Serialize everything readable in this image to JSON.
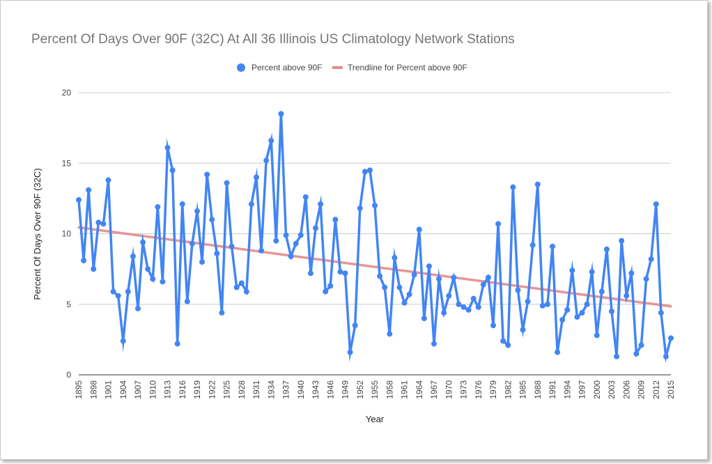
{
  "chart_data": {
    "type": "line",
    "title": "Percent Of Days Over 90F (32C) At All 36 Illinois US Climatology Network Stations",
    "xlabel": "Year",
    "ylabel": "Percent Of Days Over 90F (32C)",
    "ylim": [
      0,
      20
    ],
    "yticks": [
      0,
      5,
      10,
      15,
      20
    ],
    "xlim": [
      1895,
      2015
    ],
    "xticks": [
      1895,
      1898,
      1901,
      1904,
      1907,
      1910,
      1913,
      1916,
      1919,
      1922,
      1925,
      1928,
      1931,
      1934,
      1937,
      1940,
      1943,
      1946,
      1949,
      1952,
      1955,
      1958,
      1961,
      1964,
      1967,
      1970,
      1973,
      1976,
      1979,
      1982,
      1985,
      1988,
      1991,
      1994,
      1997,
      2000,
      2003,
      2006,
      2009,
      2012,
      2015
    ],
    "grid": true,
    "legend_position": "top",
    "series": [
      {
        "name": "Percent above 90F",
        "color": "#4285f4",
        "x": [
          1895,
          1896,
          1897,
          1898,
          1899,
          1900,
          1901,
          1902,
          1903,
          1904,
          1905,
          1906,
          1907,
          1908,
          1909,
          1910,
          1911,
          1912,
          1913,
          1914,
          1915,
          1916,
          1917,
          1918,
          1919,
          1920,
          1921,
          1922,
          1923,
          1924,
          1925,
          1926,
          1927,
          1928,
          1929,
          1930,
          1931,
          1932,
          1933,
          1934,
          1935,
          1936,
          1937,
          1938,
          1939,
          1940,
          1941,
          1942,
          1943,
          1944,
          1945,
          1946,
          1947,
          1948,
          1949,
          1950,
          1951,
          1952,
          1953,
          1954,
          1955,
          1956,
          1957,
          1958,
          1959,
          1960,
          1961,
          1962,
          1963,
          1964,
          1965,
          1966,
          1967,
          1968,
          1969,
          1970,
          1971,
          1972,
          1973,
          1974,
          1975,
          1976,
          1977,
          1978,
          1979,
          1980,
          1981,
          1982,
          1983,
          1984,
          1985,
          1986,
          1987,
          1988,
          1989,
          1990,
          1991,
          1992,
          1993,
          1994,
          1995,
          1996,
          1997,
          1998,
          1999,
          2000,
          2001,
          2002,
          2003,
          2004,
          2005,
          2006,
          2007,
          2008,
          2009,
          2010,
          2011,
          2012,
          2013,
          2014,
          2015
        ],
        "values": [
          12.4,
          8.1,
          13.1,
          7.5,
          10.8,
          10.7,
          13.8,
          5.9,
          5.6,
          2.4,
          5.9,
          8.4,
          4.7,
          9.4,
          7.5,
          6.8,
          11.9,
          6.6,
          16.1,
          14.5,
          2.2,
          12.1,
          5.2,
          9.3,
          11.6,
          8.0,
          14.2,
          11.0,
          8.6,
          4.4,
          13.6,
          9.1,
          6.2,
          6.5,
          5.9,
          12.1,
          14.0,
          8.8,
          15.2,
          16.6,
          9.5,
          18.5,
          9.9,
          8.4,
          9.3,
          9.9,
          12.6,
          7.2,
          10.4,
          12.1,
          5.9,
          6.3,
          11.0,
          7.3,
          7.2,
          1.6,
          3.5,
          11.8,
          14.4,
          14.5,
          12.0,
          7.0,
          6.2,
          2.9,
          8.3,
          6.2,
          5.1,
          5.7,
          7.1,
          10.3,
          4.0,
          7.7,
          2.2,
          6.8,
          4.4,
          5.6,
          6.9,
          5.0,
          4.8,
          4.6,
          5.4,
          4.8,
          6.4,
          6.9,
          3.5,
          10.7,
          2.4,
          2.1,
          13.3,
          6.0,
          3.2,
          5.2,
          9.2,
          13.5,
          4.9,
          5.0,
          9.1,
          1.6,
          3.9,
          4.6,
          7.4,
          4.1,
          4.4,
          5.0,
          7.3,
          2.8,
          5.9,
          8.9,
          4.5,
          1.3,
          9.5,
          5.6,
          7.2,
          1.5,
          2.1,
          6.8,
          8.2,
          12.1,
          4.4,
          1.3,
          2.6
        ]
      },
      {
        "name": "Trendline for Percent above 90F",
        "color": "#e58a8a",
        "x": [
          1895,
          2015
        ],
        "values": [
          10.45,
          4.85
        ]
      }
    ]
  }
}
